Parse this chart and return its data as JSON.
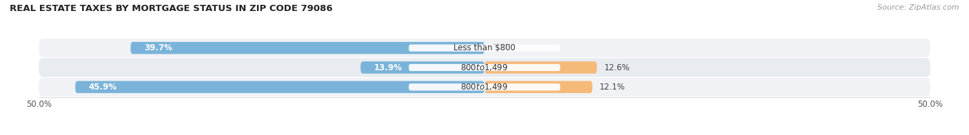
{
  "title": "REAL ESTATE TAXES BY MORTGAGE STATUS IN ZIP CODE 79086",
  "source": "Source: ZipAtlas.com",
  "rows": [
    {
      "label": "Less than $800",
      "without_mortgage": 39.7,
      "with_mortgage": 0.0
    },
    {
      "label": "$800 to $1,499",
      "without_mortgage": 13.9,
      "with_mortgage": 12.6
    },
    {
      "label": "$800 to $1,499",
      "without_mortgage": 45.9,
      "with_mortgage": 12.1
    }
  ],
  "color_without": "#7ab3d9",
  "color_with": "#f5b97a",
  "color_without_light": "#b8d4ea",
  "color_with_light": "#f9d4a8",
  "row_bg_odd": "#f0f2f5",
  "row_bg_even": "#e8ecf0",
  "xlim": [
    -50,
    50
  ],
  "bar_height": 0.62,
  "title_fontsize": 9.5,
  "source_fontsize": 8,
  "tick_fontsize": 8.5,
  "label_fontsize": 8.5,
  "value_fontsize": 8.5,
  "legend_fontsize": 8.5
}
